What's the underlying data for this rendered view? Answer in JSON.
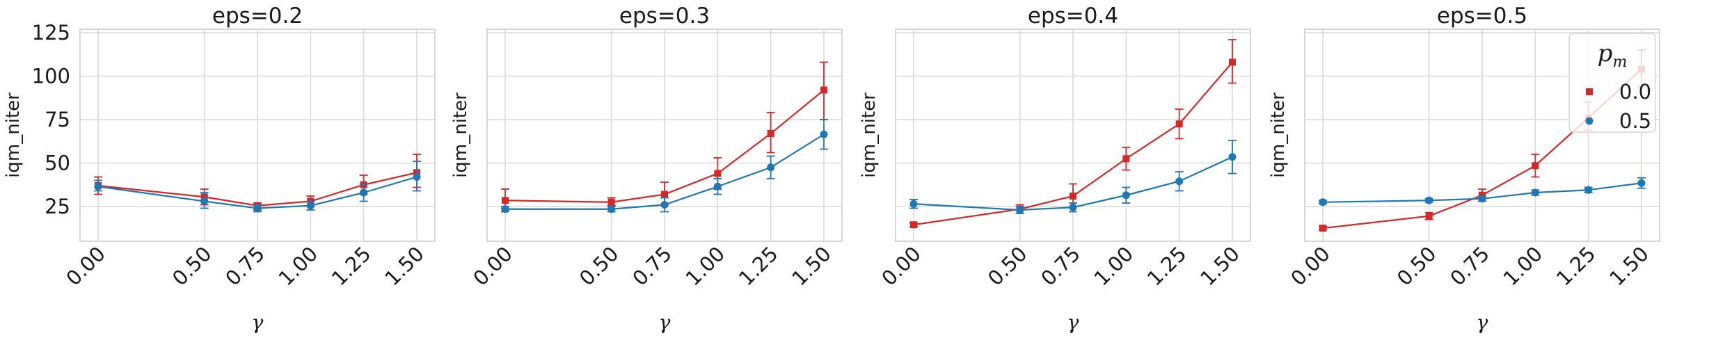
{
  "chart_data": {
    "type": "line",
    "shared_y": true,
    "ylim": [
      5,
      127
    ],
    "yticks": [
      25,
      50,
      75,
      100,
      125
    ],
    "xticks": [
      0.0,
      0.5,
      0.75,
      1.0,
      1.25,
      1.5
    ],
    "xtick_labels": [
      "0.00",
      "0.50",
      "0.75",
      "1.00",
      "1.25",
      "1.50"
    ],
    "xlabel": "γ",
    "ylabel": "iqm_niter",
    "grid": true,
    "legend": {
      "title_base": "p",
      "title_sub": "m",
      "placement": "top-right of last panel",
      "entries": [
        {
          "label": "0.0",
          "color": "#d62728",
          "marker": "square"
        },
        {
          "label": "0.5",
          "color": "#1f77b4",
          "marker": "circle"
        }
      ]
    },
    "panels": [
      {
        "title": "eps=0.2",
        "series": [
          {
            "name": "0.0",
            "color": "#d62728",
            "marker": "square",
            "values": [
              37,
              30.5,
              25.5,
              28,
              37.5,
              44.5
            ],
            "err_low": [
              32,
              26,
              23,
              25,
              32,
              36
            ],
            "err_high": [
              42,
              35,
              27,
              31,
              43,
              55
            ]
          },
          {
            "name": "0.5",
            "color": "#1f77b4",
            "marker": "circle",
            "values": [
              36.5,
              28,
              24,
              25.5,
              33,
              42
            ],
            "err_low": [
              34,
              24,
              22,
              23,
              28,
              34
            ],
            "err_high": [
              40,
              33,
              26,
              28,
              38,
              51
            ]
          }
        ]
      },
      {
        "title": "eps=0.3",
        "series": [
          {
            "name": "0.0",
            "color": "#d62728",
            "marker": "square",
            "values": [
              28.5,
              27.5,
              32,
              44,
              67,
              92
            ],
            "err_low": [
              24,
              25.5,
              26,
              35,
              56,
              75
            ],
            "err_high": [
              35,
              30,
              39,
              53,
              79,
              108
            ]
          },
          {
            "name": "0.5",
            "color": "#1f77b4",
            "marker": "circle",
            "values": [
              23.5,
              23.5,
              26,
              36.5,
              47.5,
              66.5
            ],
            "err_low": [
              22,
              22,
              22,
              32,
              41,
              58
            ],
            "err_high": [
              25,
              25,
              30,
              41,
              54,
              75
            ]
          }
        ]
      },
      {
        "title": "eps=0.4",
        "series": [
          {
            "name": "0.0",
            "color": "#d62728",
            "marker": "square",
            "values": [
              14.5,
              23.5,
              31,
              52.5,
              72.5,
              108
            ],
            "err_low": [
              13.5,
              21,
              27,
              46,
              64,
              96
            ],
            "err_high": [
              15.5,
              26,
              38,
              59,
              81,
              121
            ]
          },
          {
            "name": "0.5",
            "color": "#1f77b4",
            "marker": "circle",
            "values": [
              26.5,
              23,
              24.5,
              31.5,
              39.5,
              53.5
            ],
            "err_low": [
              24,
              21,
              22,
              27,
              34,
              44
            ],
            "err_high": [
              29,
              25,
              27,
              36,
              45,
              63
            ]
          }
        ]
      },
      {
        "title": "eps=0.5",
        "series": [
          {
            "name": "0.0",
            "color": "#d62728",
            "marker": "square",
            "values": [
              12.5,
              19.5,
              31.5,
              48.5,
              76,
              104
            ],
            "err_low": [
              11.5,
              17.5,
              28,
              42,
              69,
              94
            ],
            "err_high": [
              13.5,
              21.5,
              35,
              55,
              85,
              115
            ]
          },
          {
            "name": "0.5",
            "color": "#1f77b4",
            "marker": "circle",
            "values": [
              27.5,
              28.5,
              29.5,
              33,
              34.5,
              38.5
            ],
            "err_low": [
              26.5,
              27.5,
              28,
              31.5,
              33,
              35.5
            ],
            "err_high": [
              28.5,
              29.5,
              31,
              34.5,
              36,
              41.5
            ]
          }
        ]
      }
    ]
  }
}
